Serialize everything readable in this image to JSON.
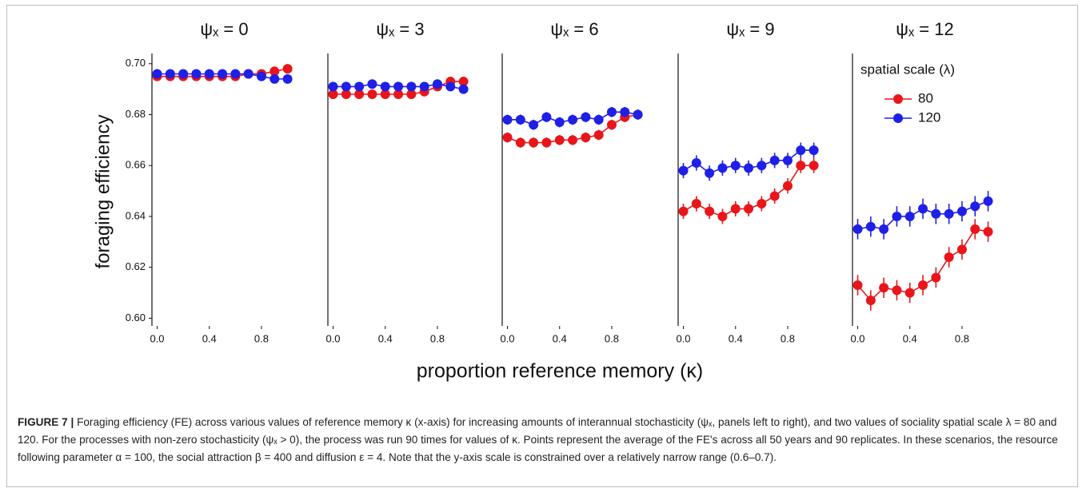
{
  "chart_data": [
    {
      "type": "line",
      "title": "ψₓ = 0",
      "ylabel": "foraging efficiency",
      "x": [
        0,
        0.1,
        0.2,
        0.3,
        0.4,
        0.5,
        0.6,
        0.7,
        0.8,
        0.9,
        1.0
      ],
      "xlim": [
        -0.04,
        1.07
      ],
      "xticks": [
        {
          "value": 0,
          "label": "0.0"
        },
        0.4,
        0.8
      ],
      "ylim": [
        0.597,
        0.704
      ],
      "yticks": [
        {
          "value": 0.6,
          "label": "0.60"
        },
        0.62,
        0.64,
        0.66,
        0.68,
        {
          "value": 0.7,
          "label": "0.70"
        }
      ],
      "series": [
        {
          "name": "80",
          "color": "#e8161b",
          "values": [
            0.695,
            0.695,
            0.695,
            0.695,
            0.695,
            0.695,
            0.695,
            0.696,
            0.696,
            0.697,
            0.698
          ],
          "errors": [
            0.001,
            0.001,
            0.001,
            0.001,
            0.001,
            0.001,
            0.001,
            0.001,
            0.001,
            0.001,
            0.001
          ]
        },
        {
          "name": "120",
          "color": "#1f1fe6",
          "values": [
            0.696,
            0.696,
            0.696,
            0.696,
            0.696,
            0.696,
            0.696,
            0.696,
            0.695,
            0.694,
            0.694
          ],
          "errors": [
            0.001,
            0.001,
            0.001,
            0.001,
            0.001,
            0.001,
            0.001,
            0.001,
            0.001,
            0.001,
            0.001
          ]
        }
      ]
    },
    {
      "type": "line",
      "title": "ψₓ = 3",
      "x": [
        0,
        0.1,
        0.2,
        0.3,
        0.4,
        0.5,
        0.6,
        0.7,
        0.8,
        0.9,
        1.0
      ],
      "xlim": [
        -0.04,
        1.07
      ],
      "xticks": [
        {
          "value": 0,
          "label": "0.0"
        },
        0.4,
        0.8
      ],
      "ylim": [
        0.597,
        0.704
      ],
      "series": [
        {
          "name": "80",
          "color": "#e8161b",
          "values": [
            0.688,
            0.688,
            0.688,
            0.688,
            0.688,
            0.688,
            0.688,
            0.689,
            0.691,
            0.693,
            0.693
          ],
          "errors": [
            0.0015,
            0.0015,
            0.0015,
            0.0015,
            0.0015,
            0.0015,
            0.0015,
            0.0015,
            0.0015,
            0.0015,
            0.0015
          ]
        },
        {
          "name": "120",
          "color": "#1f1fe6",
          "values": [
            0.691,
            0.691,
            0.691,
            0.692,
            0.691,
            0.691,
            0.691,
            0.691,
            0.692,
            0.691,
            0.69
          ],
          "errors": [
            0.0015,
            0.0015,
            0.0015,
            0.0015,
            0.0015,
            0.0015,
            0.0015,
            0.0015,
            0.0015,
            0.0015,
            0.0015
          ]
        }
      ]
    },
    {
      "type": "line",
      "title": "ψₓ = 6",
      "xlabel": "proportion reference memory (κ)",
      "x": [
        0,
        0.1,
        0.2,
        0.3,
        0.4,
        0.5,
        0.6,
        0.7,
        0.8,
        0.9,
        1.0
      ],
      "xlim": [
        -0.04,
        1.07
      ],
      "xticks": [
        {
          "value": 0,
          "label": "0.0"
        },
        0.4,
        0.8
      ],
      "ylim": [
        0.597,
        0.704
      ],
      "series": [
        {
          "name": "80",
          "color": "#e8161b",
          "values": [
            0.671,
            0.669,
            0.669,
            0.669,
            0.67,
            0.67,
            0.671,
            0.672,
            0.676,
            0.679,
            0.68
          ],
          "errors": [
            0.002,
            0.002,
            0.002,
            0.002,
            0.002,
            0.002,
            0.002,
            0.002,
            0.002,
            0.002,
            0.002
          ]
        },
        {
          "name": "120",
          "color": "#1f1fe6",
          "values": [
            0.678,
            0.678,
            0.676,
            0.679,
            0.677,
            0.678,
            0.679,
            0.678,
            0.681,
            0.681,
            0.68
          ],
          "errors": [
            0.002,
            0.002,
            0.002,
            0.002,
            0.002,
            0.002,
            0.002,
            0.002,
            0.002,
            0.002,
            0.002
          ]
        }
      ]
    },
    {
      "type": "line",
      "title": "ψₓ = 9",
      "x": [
        0,
        0.1,
        0.2,
        0.3,
        0.4,
        0.5,
        0.6,
        0.7,
        0.8,
        0.9,
        1.0
      ],
      "xlim": [
        -0.04,
        1.07
      ],
      "xticks": [
        {
          "value": 0,
          "label": "0.0"
        },
        0.4,
        0.8
      ],
      "ylim": [
        0.597,
        0.704
      ],
      "series": [
        {
          "name": "80",
          "color": "#e8161b",
          "values": [
            0.642,
            0.645,
            0.642,
            0.64,
            0.643,
            0.643,
            0.645,
            0.648,
            0.652,
            0.66,
            0.66
          ],
          "errors": [
            0.003,
            0.003,
            0.003,
            0.003,
            0.003,
            0.003,
            0.003,
            0.003,
            0.003,
            0.003,
            0.003
          ]
        },
        {
          "name": "120",
          "color": "#1f1fe6",
          "values": [
            0.658,
            0.661,
            0.657,
            0.659,
            0.66,
            0.659,
            0.66,
            0.662,
            0.662,
            0.666,
            0.666
          ],
          "errors": [
            0.003,
            0.003,
            0.003,
            0.003,
            0.003,
            0.003,
            0.003,
            0.003,
            0.003,
            0.003,
            0.003
          ]
        }
      ]
    },
    {
      "type": "line",
      "title": "ψₓ = 12",
      "legend": "top-right",
      "legend_title": "spatial scale (λ)",
      "x": [
        0,
        0.1,
        0.2,
        0.3,
        0.4,
        0.5,
        0.6,
        0.7,
        0.8,
        0.9,
        1.0
      ],
      "xlim": [
        -0.04,
        1.07
      ],
      "xticks": [
        {
          "value": 0,
          "label": "0.0"
        },
        0.4,
        0.8
      ],
      "ylim": [
        0.597,
        0.704
      ],
      "series": [
        {
          "name": "80",
          "color": "#e8161b",
          "values": [
            0.613,
            0.607,
            0.612,
            0.611,
            0.61,
            0.613,
            0.616,
            0.624,
            0.627,
            0.635,
            0.634
          ],
          "errors": [
            0.004,
            0.004,
            0.004,
            0.004,
            0.004,
            0.004,
            0.004,
            0.004,
            0.004,
            0.004,
            0.004
          ]
        },
        {
          "name": "120",
          "color": "#1f1fe6",
          "values": [
            0.635,
            0.636,
            0.635,
            0.64,
            0.64,
            0.643,
            0.641,
            0.641,
            0.642,
            0.644,
            0.646
          ],
          "errors": [
            0.004,
            0.004,
            0.004,
            0.004,
            0.004,
            0.004,
            0.004,
            0.004,
            0.004,
            0.004,
            0.004
          ]
        }
      ]
    }
  ],
  "caption": {
    "label": "FIGURE 7 |",
    "text": "Foraging efficiency (FE) across various values of reference memory κ (x-axis) for increasing amounts of interannual stochasticity (ψₓ, panels left to right), and two values of sociality spatial scale λ = 80 and 120. For the processes with non-zero stochasticity (ψₓ > 0), the process was run 90 times for values of κ. Points represent the average of the FE's across all 50 years and 90 replicates. In these scenarios, the resource following parameter α = 100, the social attraction β = 400 and diffusion ε = 4. Note that the y-axis scale is constrained over a relatively narrow range (0.6–0.7)."
  }
}
